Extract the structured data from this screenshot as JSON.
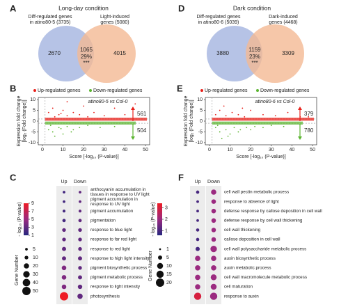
{
  "venn": [
    {
      "label": "A",
      "title": "Long-day condition",
      "left_set": [
        "Diff-regulated genes",
        "in atino80-5 (3735)"
      ],
      "right_set": [
        "Light-induced",
        "genes (5080)"
      ],
      "left_only": 2670,
      "overlap": 1065,
      "overlap_pct": "29%",
      "significance": "***",
      "right_only": 4015
    },
    {
      "label": "D",
      "title": "Dark condition",
      "left_set": [
        "Diff-regulated genes",
        "in atino80-6 (5039)"
      ],
      "right_set": [
        "Dark-induced",
        "genes (4468)"
      ],
      "left_only": 3880,
      "overlap": 1159,
      "overlap_pct": "23%",
      "significance": "***",
      "right_only": 3309
    }
  ],
  "scatter": [
    {
      "label": "B",
      "type": "scatter",
      "comparison": "atino80-5 vs Col-0",
      "up_count": 561,
      "down_count": 504,
      "series": [
        {
          "name": "Up-regulated genes",
          "color": "#e8201a",
          "x": [
            3,
            5,
            8,
            10,
            12,
            15,
            18,
            22,
            25,
            30,
            35,
            40,
            45,
            12,
            20,
            6,
            9
          ],
          "y": [
            4,
            6,
            3,
            5,
            2.5,
            4,
            3,
            2,
            4,
            2.5,
            6,
            3,
            8,
            9,
            7,
            2,
            3.5
          ]
        },
        {
          "name": "Down-regulated genes",
          "color": "#5cb531",
          "x": [
            3,
            5,
            8,
            10,
            12,
            15,
            18,
            22,
            28,
            35,
            6,
            14,
            4,
            9
          ],
          "y": [
            -4,
            -5,
            -3,
            -6,
            -2.5,
            -4,
            -3,
            -2,
            -3,
            -2.5,
            -7,
            -5,
            -2,
            -3.5
          ]
        }
      ],
      "xlim": [
        -2,
        52
      ],
      "xticks": [
        0,
        10,
        20,
        30,
        40,
        50
      ],
      "ylim": [
        -11,
        11
      ],
      "yticks": [
        -10,
        -5,
        0,
        5,
        10
      ],
      "xlabel": "Score [-log₁₀ (P-value)]",
      "ylabel": [
        "Expression fold change",
        "[log₂ (Fold change)]"
      ]
    },
    {
      "label": "E",
      "type": "scatter",
      "comparison": "atino80-6 vs Col-0",
      "up_count": 379,
      "down_count": 780,
      "series": [
        {
          "name": "Up-regulated genes",
          "color": "#e8201a",
          "x": [
            3,
            5,
            8,
            11,
            14,
            17,
            20,
            26,
            32,
            38,
            44,
            7,
            16,
            48
          ],
          "y": [
            3,
            5,
            2.5,
            4,
            3,
            2,
            5,
            3,
            2.5,
            4,
            2,
            7,
            6,
            2
          ]
        },
        {
          "name": "Down-regulated genes",
          "color": "#5cb531",
          "x": [
            3,
            5,
            8,
            10,
            12,
            15,
            18,
            22,
            26,
            30,
            36,
            6,
            14,
            4,
            9,
            20
          ],
          "y": [
            -3,
            -5,
            -4,
            -6,
            -3,
            -4,
            -3,
            -2.5,
            -3,
            -2,
            -2.5,
            -8,
            -5,
            -2,
            -7,
            -4
          ]
        }
      ],
      "xlim": [
        -2,
        52
      ],
      "xticks": [
        0,
        10,
        20,
        30,
        40,
        50
      ],
      "ylim": [
        -11,
        11
      ],
      "yticks": [
        -10,
        -5,
        0,
        5,
        10
      ],
      "xlabel": "Score [-log₁₀ (P-value)]",
      "ylabel": [
        "Expression fold change",
        "[log₂ (Fold change)]"
      ]
    }
  ],
  "dotplot": [
    {
      "label": "C",
      "columns": [
        "Up",
        "Down"
      ],
      "terms": [
        [
          "anthocyanin accumulation in",
          "tissues in response to UV light"
        ],
        [
          "pigment accumulation in",
          "response to UV light"
        ],
        [
          "pigment accumulation"
        ],
        [
          "pigmentation"
        ],
        [
          "response to blue light"
        ],
        [
          "response to far red light"
        ],
        [
          "response to red light"
        ],
        [
          "response to high light intensity"
        ],
        [
          "pigment biosynthetic process"
        ],
        [
          "pigment metabolic process"
        ],
        [
          "response to light intensity"
        ],
        [
          "photosynthesis"
        ]
      ],
      "up_size": [
        5,
        5,
        6,
        8,
        10,
        10,
        12,
        12,
        15,
        15,
        15,
        50
      ],
      "up_color": [
        2,
        2,
        2,
        2,
        3,
        3,
        3,
        3,
        4,
        4,
        4,
        9
      ],
      "down_size": [
        5,
        5,
        6,
        8,
        10,
        10,
        10,
        12,
        10,
        12,
        14,
        20
      ],
      "down_color": [
        3,
        3,
        3,
        3,
        3,
        3,
        3,
        3,
        3,
        3,
        3,
        3
      ],
      "color_label": "- log₁₀ (P-value)",
      "color_lim": [
        1,
        9
      ],
      "color_ticks": [
        9,
        7,
        5,
        3,
        1
      ],
      "size_label": "Gene Number",
      "size_ticks": [
        5,
        10,
        20,
        30,
        40,
        50
      ]
    },
    {
      "label": "F",
      "columns": [
        "Up",
        "Down"
      ],
      "terms": [
        [
          "cell wall pectin metabolic process"
        ],
        [
          "response to absence of light"
        ],
        [
          "defense response by callose deposition in cell wall"
        ],
        [
          "defense response by cell wall thickening"
        ],
        [
          "cell wall thickening"
        ],
        [
          "callose deposition in cell wall"
        ],
        [
          "cell wall polysaccharide metabolic process"
        ],
        [
          "auxin biosynthetic process"
        ],
        [
          "auxin metabolic process"
        ],
        [
          "cell wall macromolecule metabolic process"
        ],
        [
          "cell maturation"
        ],
        [
          "response to auxin"
        ]
      ],
      "up_size": [
        3,
        2,
        2,
        2,
        3,
        3,
        5,
        8,
        8,
        8,
        8,
        15
      ],
      "up_color": [
        1,
        1,
        1,
        1,
        1,
        1,
        1,
        2,
        2,
        2,
        2,
        3
      ],
      "down_size": [
        8,
        6,
        6,
        6,
        6,
        6,
        12,
        8,
        8,
        10,
        10,
        15
      ],
      "down_color": [
        2,
        2,
        2,
        2,
        2,
        2,
        2,
        2,
        2,
        2,
        2,
        2
      ],
      "color_label": "- log₁₀ (P-value)",
      "color_lim": [
        0.6,
        3.4
      ],
      "color_ticks": [
        3,
        2,
        1
      ],
      "size_label": "Gene Number",
      "size_ticks": [
        1,
        5,
        10,
        15,
        20
      ]
    }
  ]
}
